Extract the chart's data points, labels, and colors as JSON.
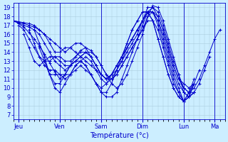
{
  "xlabel": "Température (°c)",
  "background_color": "#cceeff",
  "line_color": "#0000cc",
  "marker": "+",
  "ylim": [
    6.5,
    19.5
  ],
  "yticks": [
    7,
    8,
    9,
    10,
    11,
    12,
    13,
    14,
    15,
    16,
    17,
    18,
    19
  ],
  "xlim": [
    0,
    20.5
  ],
  "day_positions": [
    0.5,
    4.5,
    8.5,
    12.5,
    16.5,
    19.5
  ],
  "day_labels": [
    "Jeu",
    "Ven",
    "Sam",
    "Dim",
    "Lun",
    "Ma"
  ],
  "grid_color": "#aaccdd",
  "tick_color": "#0000cc",
  "fontsize_ticks": 6,
  "fontsize_xlabel": 7,
  "linewidth": 0.7,
  "markersize": 3,
  "lines": [
    {
      "x": [
        0.0,
        0.5,
        1.0,
        1.5,
        2.0,
        2.5,
        3.0,
        3.5,
        4.0,
        4.5,
        5.0,
        5.5,
        6.0,
        6.5,
        7.0,
        7.5,
        8.0,
        8.5,
        9.0,
        9.5,
        10.0,
        10.5,
        11.0,
        11.5,
        12.0,
        12.5,
        13.0,
        13.5,
        14.0,
        14.5,
        15.0,
        15.5,
        16.0,
        16.5,
        17.0,
        17.5,
        18.0,
        18.5,
        19.0,
        19.5,
        20.0
      ],
      "y": [
        17.5,
        17.2,
        16.8,
        16.2,
        15.5,
        14.7,
        13.8,
        12.8,
        11.8,
        11.0,
        11.5,
        12.5,
        13.5,
        14.2,
        14.5,
        14.2,
        13.5,
        12.5,
        11.5,
        10.5,
        10.0,
        10.5,
        11.5,
        13.0,
        14.5,
        16.0,
        18.0,
        19.2,
        19.0,
        17.5,
        15.5,
        13.5,
        11.5,
        10.0,
        9.5,
        10.0,
        11.0,
        12.5,
        14.0,
        15.5,
        16.5
      ]
    },
    {
      "x": [
        0.0,
        0.5,
        1.0,
        1.5,
        2.0,
        2.5,
        3.0,
        3.5,
        4.0,
        4.5,
        5.0,
        5.5,
        6.0,
        6.5,
        7.0,
        7.5,
        8.0,
        8.5,
        9.0,
        9.5,
        10.0,
        10.5,
        11.0,
        11.5,
        12.0,
        12.5,
        13.0,
        13.5,
        14.0,
        14.5,
        15.0,
        15.5,
        16.0,
        16.5,
        17.0,
        17.5,
        18.0,
        18.5,
        19.0
      ],
      "y": [
        17.5,
        17.3,
        17.0,
        16.8,
        16.5,
        16.0,
        15.0,
        14.0,
        13.0,
        12.5,
        12.0,
        12.5,
        13.0,
        13.5,
        14.0,
        14.0,
        13.5,
        12.5,
        11.5,
        11.0,
        11.5,
        12.5,
        13.5,
        14.5,
        15.5,
        17.0,
        18.5,
        19.0,
        18.5,
        17.0,
        15.0,
        13.0,
        11.5,
        9.5,
        9.0,
        9.5,
        10.5,
        12.0,
        13.5
      ]
    },
    {
      "x": [
        0.0,
        0.5,
        1.0,
        1.5,
        2.0,
        2.5,
        3.0,
        3.5,
        4.0,
        4.5,
        5.0,
        5.5,
        6.0,
        6.5,
        7.0,
        7.5,
        8.0,
        8.5,
        9.0,
        9.5,
        10.0,
        10.5,
        11.0,
        11.5,
        12.0,
        12.5,
        13.0,
        13.5,
        14.0,
        14.5,
        15.0,
        15.5,
        16.0,
        16.5,
        17.0,
        17.5,
        18.0
      ],
      "y": [
        17.5,
        17.4,
        17.3,
        17.2,
        17.0,
        16.5,
        16.0,
        15.0,
        14.0,
        14.0,
        14.5,
        14.5,
        14.0,
        13.5,
        13.0,
        12.5,
        12.0,
        11.5,
        11.0,
        11.0,
        11.5,
        12.5,
        13.5,
        14.5,
        15.5,
        16.5,
        18.0,
        18.5,
        18.0,
        16.5,
        14.5,
        12.5,
        11.0,
        10.5,
        10.0,
        10.5,
        12.0
      ]
    },
    {
      "x": [
        0.0,
        0.5,
        1.0,
        1.5,
        2.0,
        2.5,
        3.0,
        3.5,
        4.0,
        4.5,
        5.0,
        5.5,
        6.0,
        6.5,
        7.0,
        7.5,
        8.0,
        8.5,
        9.0,
        9.5,
        10.0,
        10.5,
        11.0,
        11.5,
        12.0,
        12.5,
        13.0,
        13.5,
        14.0,
        14.5,
        15.0,
        15.5,
        16.0,
        16.5,
        17.0,
        17.5
      ],
      "y": [
        17.5,
        17.4,
        17.2,
        17.0,
        16.8,
        16.5,
        16.0,
        15.5,
        15.0,
        14.5,
        14.0,
        14.5,
        15.0,
        15.0,
        14.5,
        13.5,
        12.5,
        11.5,
        11.0,
        11.5,
        12.0,
        13.0,
        14.0,
        15.0,
        16.0,
        17.5,
        18.5,
        18.5,
        17.5,
        16.0,
        14.0,
        12.0,
        10.5,
        9.5,
        9.0,
        9.5
      ]
    },
    {
      "x": [
        0.5,
        1.0,
        1.5,
        2.0,
        2.5,
        3.0,
        3.5,
        4.0,
        4.5,
        5.0,
        5.5,
        6.0,
        6.5,
        7.0,
        7.5,
        8.0,
        8.5,
        9.0,
        9.5,
        10.0,
        10.5,
        11.0,
        11.5,
        12.0,
        12.5,
        13.0,
        13.5,
        14.0,
        14.5,
        15.0,
        15.5,
        16.0,
        16.5,
        17.0,
        17.5
      ],
      "y": [
        17.0,
        16.5,
        15.5,
        14.5,
        13.5,
        13.0,
        13.0,
        13.5,
        13.5,
        13.0,
        13.0,
        13.5,
        14.0,
        14.0,
        13.5,
        12.5,
        11.5,
        11.0,
        11.5,
        12.5,
        13.5,
        14.5,
        15.5,
        16.5,
        17.5,
        19.0,
        19.0,
        18.0,
        16.5,
        14.5,
        12.5,
        11.0,
        10.0,
        9.5,
        9.5
      ]
    },
    {
      "x": [
        1.0,
        1.5,
        2.0,
        2.5,
        3.0,
        3.5,
        4.0,
        4.5,
        5.0,
        5.5,
        6.0,
        6.5,
        7.0,
        7.5,
        8.0,
        8.5,
        9.0,
        9.5,
        10.0,
        10.5,
        11.0,
        11.5,
        12.0,
        12.5,
        13.0,
        13.5,
        14.0,
        14.5,
        15.0,
        15.5,
        16.0,
        16.5,
        17.0,
        17.5
      ],
      "y": [
        16.0,
        14.5,
        13.0,
        12.5,
        13.0,
        13.5,
        13.5,
        13.0,
        12.5,
        12.5,
        13.0,
        13.5,
        14.0,
        13.5,
        12.5,
        11.5,
        11.0,
        11.5,
        12.5,
        13.5,
        14.5,
        15.5,
        16.5,
        17.5,
        18.5,
        18.5,
        17.5,
        15.5,
        13.5,
        11.5,
        10.0,
        8.5,
        9.0,
        9.5
      ]
    },
    {
      "x": [
        1.5,
        2.0,
        2.5,
        3.0,
        3.5,
        4.0,
        4.5,
        5.0,
        5.5,
        6.0,
        6.5,
        7.0,
        7.5,
        8.0,
        8.5,
        9.0,
        9.5,
        10.0,
        10.5,
        11.0,
        11.5,
        12.0,
        12.5,
        13.0,
        13.5,
        14.0,
        14.5,
        15.0,
        15.5,
        16.0,
        16.5,
        17.0,
        17.5
      ],
      "y": [
        16.5,
        15.0,
        13.5,
        12.5,
        12.0,
        12.0,
        11.5,
        11.0,
        11.5,
        12.5,
        13.0,
        13.5,
        13.0,
        12.0,
        11.0,
        10.5,
        11.0,
        12.0,
        13.0,
        14.5,
        15.5,
        16.5,
        17.5,
        18.5,
        18.5,
        17.0,
        15.0,
        13.0,
        11.0,
        9.5,
        8.5,
        9.0,
        10.5
      ]
    },
    {
      "x": [
        2.0,
        2.5,
        3.0,
        3.5,
        4.0,
        4.5,
        5.0,
        5.5,
        6.0,
        6.5,
        7.0,
        7.5,
        8.0,
        8.5,
        9.0,
        9.5,
        10.0,
        10.5,
        11.0,
        11.5,
        12.0,
        12.5,
        13.0,
        13.5,
        14.0,
        14.5,
        15.0,
        15.5,
        16.0,
        16.5,
        17.0,
        17.5
      ],
      "y": [
        16.5,
        15.0,
        13.5,
        11.5,
        10.5,
        10.5,
        11.5,
        12.5,
        13.0,
        13.0,
        12.5,
        11.5,
        10.5,
        10.0,
        10.5,
        11.5,
        12.5,
        13.5,
        15.0,
        16.5,
        17.5,
        18.5,
        18.5,
        17.5,
        15.5,
        13.5,
        11.5,
        10.0,
        9.0,
        8.5,
        9.5,
        11.0
      ]
    },
    {
      "x": [
        2.5,
        3.0,
        3.5,
        4.0,
        4.5,
        5.0,
        5.5,
        6.0,
        6.5,
        7.0,
        7.5,
        8.0,
        8.5,
        9.0,
        9.5,
        10.0,
        10.5,
        11.0,
        11.5,
        12.0,
        12.5,
        13.0,
        13.5,
        14.0,
        14.5,
        15.0,
        15.5,
        16.0,
        16.5,
        17.0,
        17.5
      ],
      "y": [
        14.5,
        13.0,
        11.5,
        10.0,
        9.5,
        10.5,
        11.5,
        12.5,
        13.0,
        12.5,
        11.5,
        10.5,
        9.5,
        9.5,
        10.5,
        12.0,
        13.5,
        15.0,
        16.5,
        17.5,
        18.5,
        18.5,
        17.5,
        15.5,
        13.5,
        11.5,
        10.0,
        9.0,
        8.5,
        9.0,
        10.5
      ]
    },
    {
      "x": [
        3.0,
        3.5,
        4.0,
        4.5,
        5.0,
        5.5,
        6.0,
        6.5,
        7.0,
        7.5,
        8.0,
        8.5,
        9.0,
        9.5,
        10.0,
        10.5,
        11.0,
        11.5,
        12.0,
        12.5,
        13.0,
        13.5,
        14.0,
        14.5,
        15.0,
        15.5,
        16.0,
        16.5,
        17.0,
        17.5
      ],
      "y": [
        13.0,
        11.5,
        11.5,
        11.5,
        11.5,
        11.5,
        12.0,
        12.5,
        12.0,
        11.5,
        10.5,
        9.5,
        9.0,
        9.0,
        9.5,
        11.0,
        12.5,
        14.0,
        15.5,
        16.5,
        17.5,
        17.5,
        16.5,
        14.5,
        12.5,
        10.5,
        9.5,
        8.5,
        9.5,
        10.5
      ]
    }
  ]
}
